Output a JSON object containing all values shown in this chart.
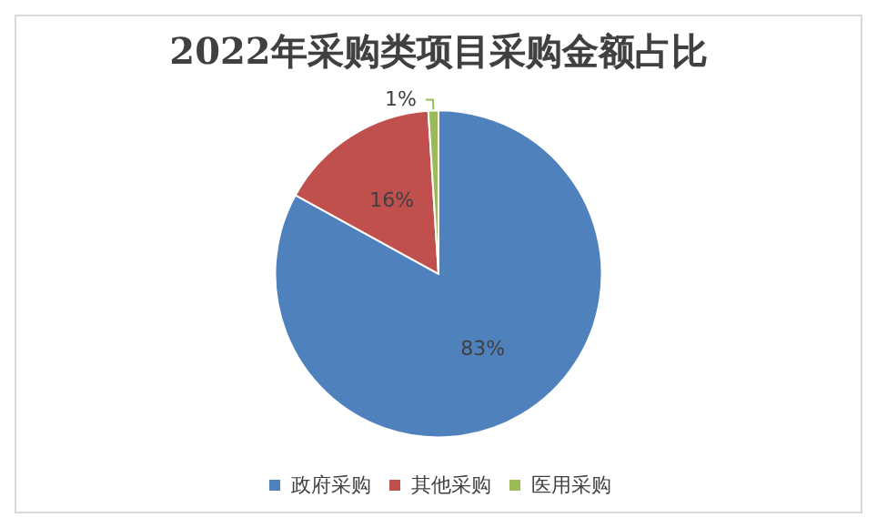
{
  "chart_data": {
    "type": "pie",
    "title": "2022年采购类项目采购金额占比",
    "categories": [
      "政府采购",
      "其他采购",
      "医用采购"
    ],
    "values": [
      83,
      16,
      1
    ],
    "colors": [
      "#4f81bd",
      "#c0504d",
      "#9bbb59"
    ],
    "value_labels": [
      "83%",
      "16%",
      "1%"
    ],
    "legend": "bottom"
  }
}
